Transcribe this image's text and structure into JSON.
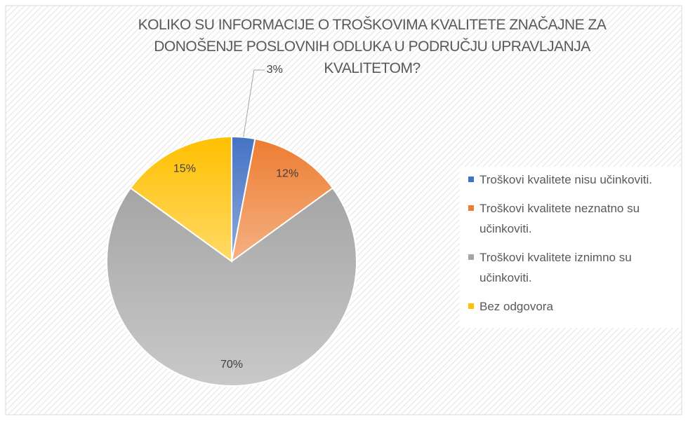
{
  "chart_data": {
    "type": "pie",
    "title": "KOLIKO SU INFORMACIJE O TROŠKOVIMA KVALITETE ZNAČAJNE ZA DONOŠENJE POSLOVNIH ODLUKA U PODRUČJU  UPRAVLJANJA KVALITETOM?",
    "categories": [
      "Troškovi kvalitete nisu učinkoviti.",
      "Troškovi kvalitete neznatno su učinkoviti.",
      "Troškovi kvalitete iznimno su učinkoviti.",
      "Bez odgovora"
    ],
    "values": [
      3,
      12,
      70,
      15
    ],
    "value_labels": [
      "3%",
      "12%",
      "70%",
      "15%"
    ],
    "colors": [
      "#4472c4",
      "#ed7d31",
      "#a5a5a5",
      "#ffc000"
    ],
    "legend": "right"
  }
}
